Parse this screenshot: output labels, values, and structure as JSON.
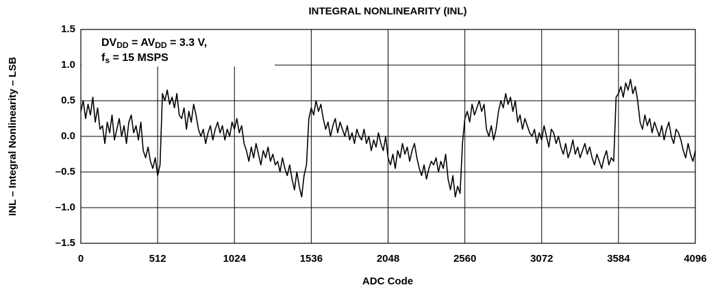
{
  "chart_data": {
    "type": "line",
    "title": "INTEGRAL NONLINEARITY (INL)",
    "x_label": "ADC Code",
    "y_label": "INL – Integral Nonlinearity – LSB",
    "annotation": [
      [
        "DV",
        "DD",
        " = AV",
        "DD",
        " = 3.3 V,"
      ],
      [
        "f",
        "s",
        " = 15 MSPS"
      ]
    ],
    "color": "#000000",
    "grid": true,
    "xlim": [
      0,
      4096
    ],
    "xticks": [
      0,
      512,
      1024,
      1536,
      2048,
      2560,
      3072,
      3584,
      4096
    ],
    "ylim": [
      -1.5,
      1.5
    ],
    "yticks": [
      {
        "value": -1.5,
        "label": "–1.5"
      },
      {
        "value": -1,
        "label": "–1.0"
      },
      {
        "value": -0.5,
        "label": "–0.5"
      },
      {
        "value": 0,
        "label": "0.0"
      },
      0.5,
      {
        "value": 1,
        "label": "1.0"
      },
      1.5
    ],
    "x": [
      0,
      16,
      32,
      48,
      64,
      80,
      96,
      112,
      128,
      144,
      160,
      176,
      192,
      208,
      224,
      240,
      256,
      272,
      288,
      304,
      320,
      336,
      352,
      368,
      384,
      400,
      416,
      432,
      448,
      464,
      480,
      496,
      512,
      528,
      544,
      560,
      576,
      592,
      608,
      624,
      640,
      656,
      672,
      688,
      704,
      720,
      736,
      752,
      768,
      784,
      800,
      816,
      832,
      848,
      864,
      880,
      896,
      912,
      928,
      944,
      960,
      976,
      992,
      1008,
      1024,
      1040,
      1056,
      1072,
      1088,
      1104,
      1120,
      1136,
      1152,
      1168,
      1184,
      1200,
      1216,
      1232,
      1248,
      1264,
      1280,
      1296,
      1312,
      1328,
      1344,
      1360,
      1376,
      1392,
      1408,
      1424,
      1440,
      1456,
      1472,
      1488,
      1504,
      1520,
      1536,
      1552,
      1568,
      1584,
      1600,
      1616,
      1632,
      1648,
      1664,
      1680,
      1696,
      1712,
      1728,
      1744,
      1760,
      1776,
      1792,
      1808,
      1824,
      1840,
      1856,
      1872,
      1888,
      1904,
      1920,
      1936,
      1952,
      1968,
      1984,
      2000,
      2016,
      2032,
      2048,
      2064,
      2080,
      2096,
      2112,
      2128,
      2144,
      2160,
      2176,
      2192,
      2208,
      2224,
      2240,
      2256,
      2272,
      2288,
      2304,
      2320,
      2336,
      2352,
      2368,
      2384,
      2400,
      2416,
      2432,
      2448,
      2464,
      2480,
      2496,
      2512,
      2528,
      2544,
      2560,
      2576,
      2592,
      2608,
      2624,
      2640,
      2656,
      2672,
      2688,
      2704,
      2720,
      2736,
      2752,
      2768,
      2784,
      2800,
      2816,
      2832,
      2848,
      2864,
      2880,
      2896,
      2912,
      2928,
      2944,
      2960,
      2976,
      2992,
      3008,
      3024,
      3040,
      3056,
      3072,
      3088,
      3104,
      3120,
      3136,
      3152,
      3168,
      3184,
      3200,
      3216,
      3232,
      3248,
      3264,
      3280,
      3296,
      3312,
      3328,
      3344,
      3360,
      3376,
      3392,
      3408,
      3424,
      3440,
      3456,
      3472,
      3488,
      3504,
      3520,
      3536,
      3552,
      3568,
      3584,
      3600,
      3616,
      3632,
      3648,
      3664,
      3680,
      3696,
      3712,
      3728,
      3744,
      3760,
      3776,
      3792,
      3808,
      3824,
      3840,
      3856,
      3872,
      3888,
      3904,
      3920,
      3936,
      3952,
      3968,
      3984,
      4000,
      4016,
      4032,
      4048,
      4064,
      4080,
      4096
    ],
    "values": [
      0.35,
      0.5,
      0.25,
      0.45,
      0.3,
      0.55,
      0.2,
      0.4,
      0.1,
      0.15,
      -0.1,
      0.2,
      0.05,
      0.3,
      -0.05,
      0.1,
      0.25,
      0.0,
      0.15,
      -0.1,
      0.2,
      0.3,
      0.05,
      0.15,
      -0.05,
      0.2,
      -0.2,
      -0.3,
      -0.15,
      -0.35,
      -0.45,
      -0.3,
      -0.55,
      -0.4,
      0.6,
      0.5,
      0.65,
      0.45,
      0.55,
      0.4,
      0.6,
      0.3,
      0.25,
      0.4,
      0.1,
      0.35,
      0.2,
      0.45,
      0.3,
      0.1,
      0.0,
      0.1,
      -0.1,
      0.05,
      0.15,
      -0.05,
      0.1,
      0.2,
      0.05,
      0.15,
      -0.05,
      0.1,
      0.0,
      0.2,
      0.1,
      0.25,
      0.05,
      0.15,
      -0.1,
      -0.2,
      -0.35,
      -0.15,
      -0.3,
      -0.1,
      -0.25,
      -0.4,
      -0.2,
      -0.3,
      -0.15,
      -0.35,
      -0.25,
      -0.4,
      -0.35,
      -0.5,
      -0.3,
      -0.45,
      -0.55,
      -0.4,
      -0.6,
      -0.75,
      -0.5,
      -0.7,
      -0.85,
      -0.55,
      -0.4,
      0.25,
      0.4,
      0.3,
      0.5,
      0.35,
      0.45,
      0.25,
      0.1,
      0.2,
      0.0,
      0.15,
      0.25,
      0.05,
      0.2,
      0.1,
      0.0,
      0.15,
      -0.05,
      0.05,
      -0.1,
      0.1,
      0.0,
      -0.05,
      0.1,
      -0.1,
      0.0,
      -0.2,
      -0.05,
      -0.15,
      0.05,
      -0.1,
      -0.2,
      0.0,
      -0.3,
      -0.4,
      -0.25,
      -0.45,
      -0.2,
      -0.3,
      -0.1,
      -0.25,
      -0.15,
      -0.35,
      -0.2,
      -0.1,
      -0.3,
      -0.45,
      -0.55,
      -0.4,
      -0.6,
      -0.45,
      -0.35,
      -0.4,
      -0.3,
      -0.5,
      -0.35,
      -0.45,
      -0.25,
      -0.6,
      -0.75,
      -0.55,
      -0.85,
      -0.7,
      -0.8,
      -0.1,
      0.25,
      0.35,
      0.2,
      0.45,
      0.3,
      0.4,
      0.5,
      0.35,
      0.45,
      0.1,
      0.0,
      0.15,
      -0.05,
      0.1,
      0.35,
      0.5,
      0.4,
      0.6,
      0.45,
      0.55,
      0.35,
      0.5,
      0.2,
      0.3,
      0.1,
      0.25,
      0.15,
      0.05,
      0.0,
      0.1,
      -0.1,
      0.05,
      -0.05,
      0.15,
      0.0,
      -0.15,
      0.1,
      0.05,
      -0.1,
      0.0,
      -0.15,
      -0.25,
      -0.1,
      -0.3,
      -0.2,
      -0.05,
      -0.25,
      -0.15,
      -0.3,
      -0.2,
      -0.1,
      -0.25,
      -0.15,
      -0.3,
      -0.4,
      -0.25,
      -0.35,
      -0.45,
      -0.3,
      -0.2,
      -0.4,
      -0.3,
      -0.35,
      0.55,
      0.6,
      0.7,
      0.55,
      0.75,
      0.65,
      0.8,
      0.6,
      0.7,
      0.5,
      0.2,
      0.1,
      0.3,
      0.15,
      0.25,
      0.05,
      0.2,
      0.1,
      0.0,
      0.15,
      -0.05,
      0.1,
      0.2,
      0.0,
      -0.1,
      0.1,
      0.05,
      -0.05,
      -0.2,
      -0.3,
      -0.1,
      -0.25,
      -0.35,
      -0.2
    ]
  }
}
